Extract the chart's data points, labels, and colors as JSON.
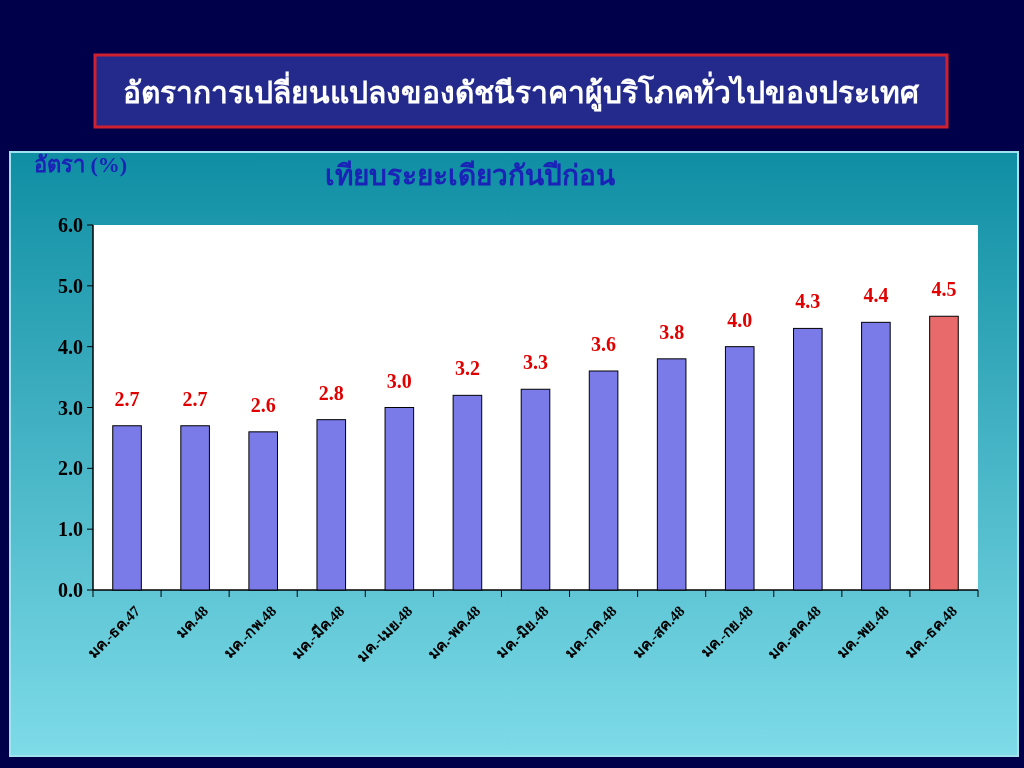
{
  "chart_data": {
    "type": "bar",
    "title": "อัตราการเปลี่ยนแปลงของดัชนีราคาผู้บริโภคทั่วไปของประเทศ",
    "subtitle": "เทียบระยะเดียวกันปีก่อน",
    "ylabel": "อัตรา (%)",
    "categories": [
      "มค.-ธค.47",
      "มค.48",
      "มค.-กพ.48",
      "มค.-มีค.48",
      "มค.-เมย.48",
      "มค.-พค.48",
      "มค.-มิย.48",
      "มค.-กค.48",
      "มค.-สค.48",
      "มค.-กย.48",
      "มค.-ตค.48",
      "มค.-พย.48",
      "มค.-ธค.48"
    ],
    "values": [
      2.7,
      2.7,
      2.6,
      2.8,
      3.0,
      3.2,
      3.3,
      3.6,
      3.8,
      4.0,
      4.3,
      4.4,
      4.5
    ],
    "value_labels": [
      "2.7",
      "2.7",
      "2.6",
      "2.8",
      "3.0",
      "3.2",
      "3.3",
      "3.6",
      "3.8",
      "4.0",
      "4.3",
      "4.4",
      "4.5"
    ],
    "colors": [
      "#7a7ae8",
      "#7a7ae8",
      "#7a7ae8",
      "#7a7ae8",
      "#7a7ae8",
      "#7a7ae8",
      "#7a7ae8",
      "#7a7ae8",
      "#7a7ae8",
      "#7a7ae8",
      "#7a7ae8",
      "#7a7ae8",
      "#e86a6a"
    ],
    "ylim": [
      0,
      6
    ],
    "yticks": [
      {
        "value": 0,
        "label": "0.0"
      },
      {
        "value": 1,
        "label": "1.0"
      },
      {
        "value": 2,
        "label": "2.0"
      },
      {
        "value": 3,
        "label": "3.0"
      },
      {
        "value": 4,
        "label": "4.0"
      },
      {
        "value": 5,
        "label": "5.0"
      },
      {
        "value": 6,
        "label": "6.0"
      }
    ]
  }
}
